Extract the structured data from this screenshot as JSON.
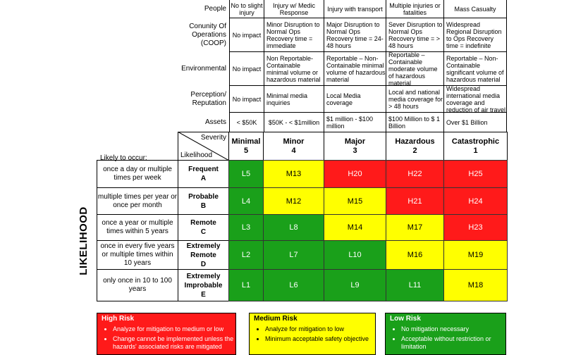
{
  "impact_rows": [
    {
      "label": "People",
      "cells": [
        "No to slight injury",
        "Injury w/ Medic Response",
        "Injury with transport",
        "Multiple injuries or fatalities",
        "Mass Casualty"
      ]
    },
    {
      "label": "Conunity Of Operations (COOP)",
      "cells": [
        "No impact",
        "Minor Disruption to Normal Ops Recovery time = immediate",
        "Major Disruption to Normal Ops Recovery time = 24-48 hours",
        "Sever Disruption to Normal Ops Recovery time = > 48 hours",
        "Widespread Regional Disruption to Ops Recovery time = indefinite"
      ]
    },
    {
      "label": "Environmental",
      "cells": [
        "No impact",
        "Non Reportable- Containable minimal volume or hazardous material",
        "Reportable – Non-Containable minimal volume of hazardous material",
        "Reportable – Containable moderate volume of hazardous material",
        "Reportable – Non-Containable significant volume of hazardous material"
      ]
    },
    {
      "label": "Perception/ Reputation",
      "cells": [
        "No impact",
        "Minimal media inquiries",
        "Local Media coverage",
        "Local and national media coverage for > 48 hours",
        "Widespread international media coverage and reduction of air travel"
      ]
    },
    {
      "label": "Assets",
      "cells": [
        "< $50K",
        "$50K - < $1million",
        "$1 million - $100 million",
        "$100 Million to $ 1 Billion",
        "Over $1 Billion"
      ]
    }
  ],
  "matrix": {
    "severity_label": "Severity",
    "likelihood_label": "Likelihood",
    "likely_to_occur": "Likely to occur:",
    "axis_title": "LIKELIHOOD",
    "severities": [
      {
        "name": "Minimal",
        "num": "5"
      },
      {
        "name": "Minor",
        "num": "4"
      },
      {
        "name": "Major",
        "num": "3"
      },
      {
        "name": "Hazardous",
        "num": "2"
      },
      {
        "name": "Catastrophic",
        "num": "1"
      }
    ],
    "rows": [
      {
        "occur": "once a day or multiple times per week",
        "level": "Frequent",
        "letter": "A",
        "cells": [
          {
            "code": "L5",
            "risk": "low"
          },
          {
            "code": "M13",
            "risk": "medium"
          },
          {
            "code": "H20",
            "risk": "high"
          },
          {
            "code": "H22",
            "risk": "high"
          },
          {
            "code": "H25",
            "risk": "high"
          }
        ]
      },
      {
        "occur": "multiple times per year or once per month",
        "level": "Probable",
        "letter": "B",
        "cells": [
          {
            "code": "L4",
            "risk": "low"
          },
          {
            "code": "M12",
            "risk": "medium"
          },
          {
            "code": "M15",
            "risk": "medium"
          },
          {
            "code": "H21",
            "risk": "high"
          },
          {
            "code": "H24",
            "risk": "high"
          }
        ]
      },
      {
        "occur": "once a year or multiple times within 5 years",
        "level": "Remote",
        "letter": "C",
        "cells": [
          {
            "code": "L3",
            "risk": "low"
          },
          {
            "code": "L8",
            "risk": "low"
          },
          {
            "code": "M14",
            "risk": "medium"
          },
          {
            "code": "M17",
            "risk": "medium"
          },
          {
            "code": "H23",
            "risk": "high"
          }
        ]
      },
      {
        "occur": "once in every five years or multiple times within 10 years",
        "level": "Extremely Remote",
        "letter": "D",
        "cells": [
          {
            "code": "L2",
            "risk": "low"
          },
          {
            "code": "L7",
            "risk": "low"
          },
          {
            "code": "L10",
            "risk": "low"
          },
          {
            "code": "M16",
            "risk": "medium"
          },
          {
            "code": "M19",
            "risk": "medium"
          }
        ]
      },
      {
        "occur": "only once in 10 to 100 years",
        "level": "Extremely Improbable",
        "letter": "E",
        "cells": [
          {
            "code": "L1",
            "risk": "low"
          },
          {
            "code": "L6",
            "risk": "low"
          },
          {
            "code": "L9",
            "risk": "low"
          },
          {
            "code": "L11",
            "risk": "low"
          },
          {
            "code": "M18",
            "risk": "medium"
          }
        ]
      }
    ]
  },
  "legend": {
    "high": {
      "title": "High Risk",
      "color": "#ff1a1a",
      "items": [
        "Analyze for mitigation to medium or low",
        "Change cannot be implemented unless the hazards' associated risks are mitigated"
      ]
    },
    "medium": {
      "title": "Medium Risk",
      "color": "#ffff00",
      "items": [
        "Analyze for mitigation to low",
        "Minimum acceptable safety objective"
      ]
    },
    "low": {
      "title": "Low Risk",
      "color": "#1aa01a",
      "items": [
        "No mitigation necessary",
        "Acceptable without restriction or limitation"
      ]
    }
  }
}
